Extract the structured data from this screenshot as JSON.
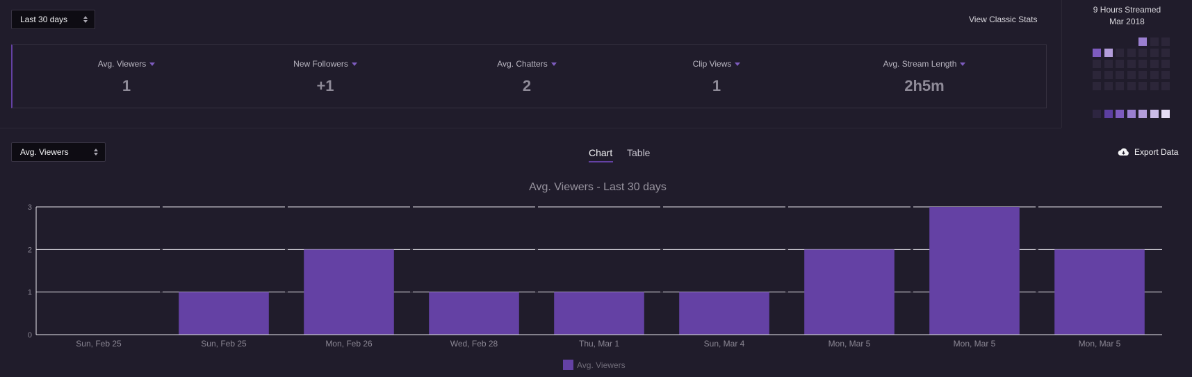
{
  "header": {
    "range_select": "Last 30 days",
    "classic_link": "View Classic Stats"
  },
  "stats": [
    {
      "label": "Avg. Viewers",
      "value": "1"
    },
    {
      "label": "New Followers",
      "value": "+1"
    },
    {
      "label": "Avg. Chatters",
      "value": "2"
    },
    {
      "label": "Clip Views",
      "value": "1"
    },
    {
      "label": "Avg. Stream Length",
      "value": "2h5m"
    }
  ],
  "calendar": {
    "line1": "9 Hours Streamed",
    "line2": "Mar 2018",
    "legend_colors": [
      "#2d2540",
      "#5c3fa0",
      "#7d5bbe",
      "#9a7fd0",
      "#b39ddb",
      "#cbbce8",
      "#e6ddf6"
    ]
  },
  "toolbar": {
    "metric_select": "Avg. Viewers",
    "tab_chart": "Chart",
    "tab_table": "Table",
    "export": "Export Data"
  },
  "chart_data": {
    "type": "bar",
    "title": "Avg. Viewers - Last 30 days",
    "categories": [
      "Sun, Feb 25",
      "Sun, Feb 25",
      "Mon, Feb 26",
      "Wed, Feb 28",
      "Thu, Mar 1",
      "Sun, Mar 4",
      "Mon, Mar 5",
      "Mon, Mar 5",
      "Mon, Mar 5"
    ],
    "series": [
      {
        "name": "Avg. Viewers",
        "values": [
          0,
          1,
          2,
          1,
          1,
          1,
          2,
          3,
          2
        ]
      }
    ],
    "ylim": [
      0,
      3
    ],
    "yticks": [
      0,
      1,
      2,
      3
    ],
    "grid": true,
    "legend": "bottom-center",
    "bar_color": "#6441a4"
  }
}
